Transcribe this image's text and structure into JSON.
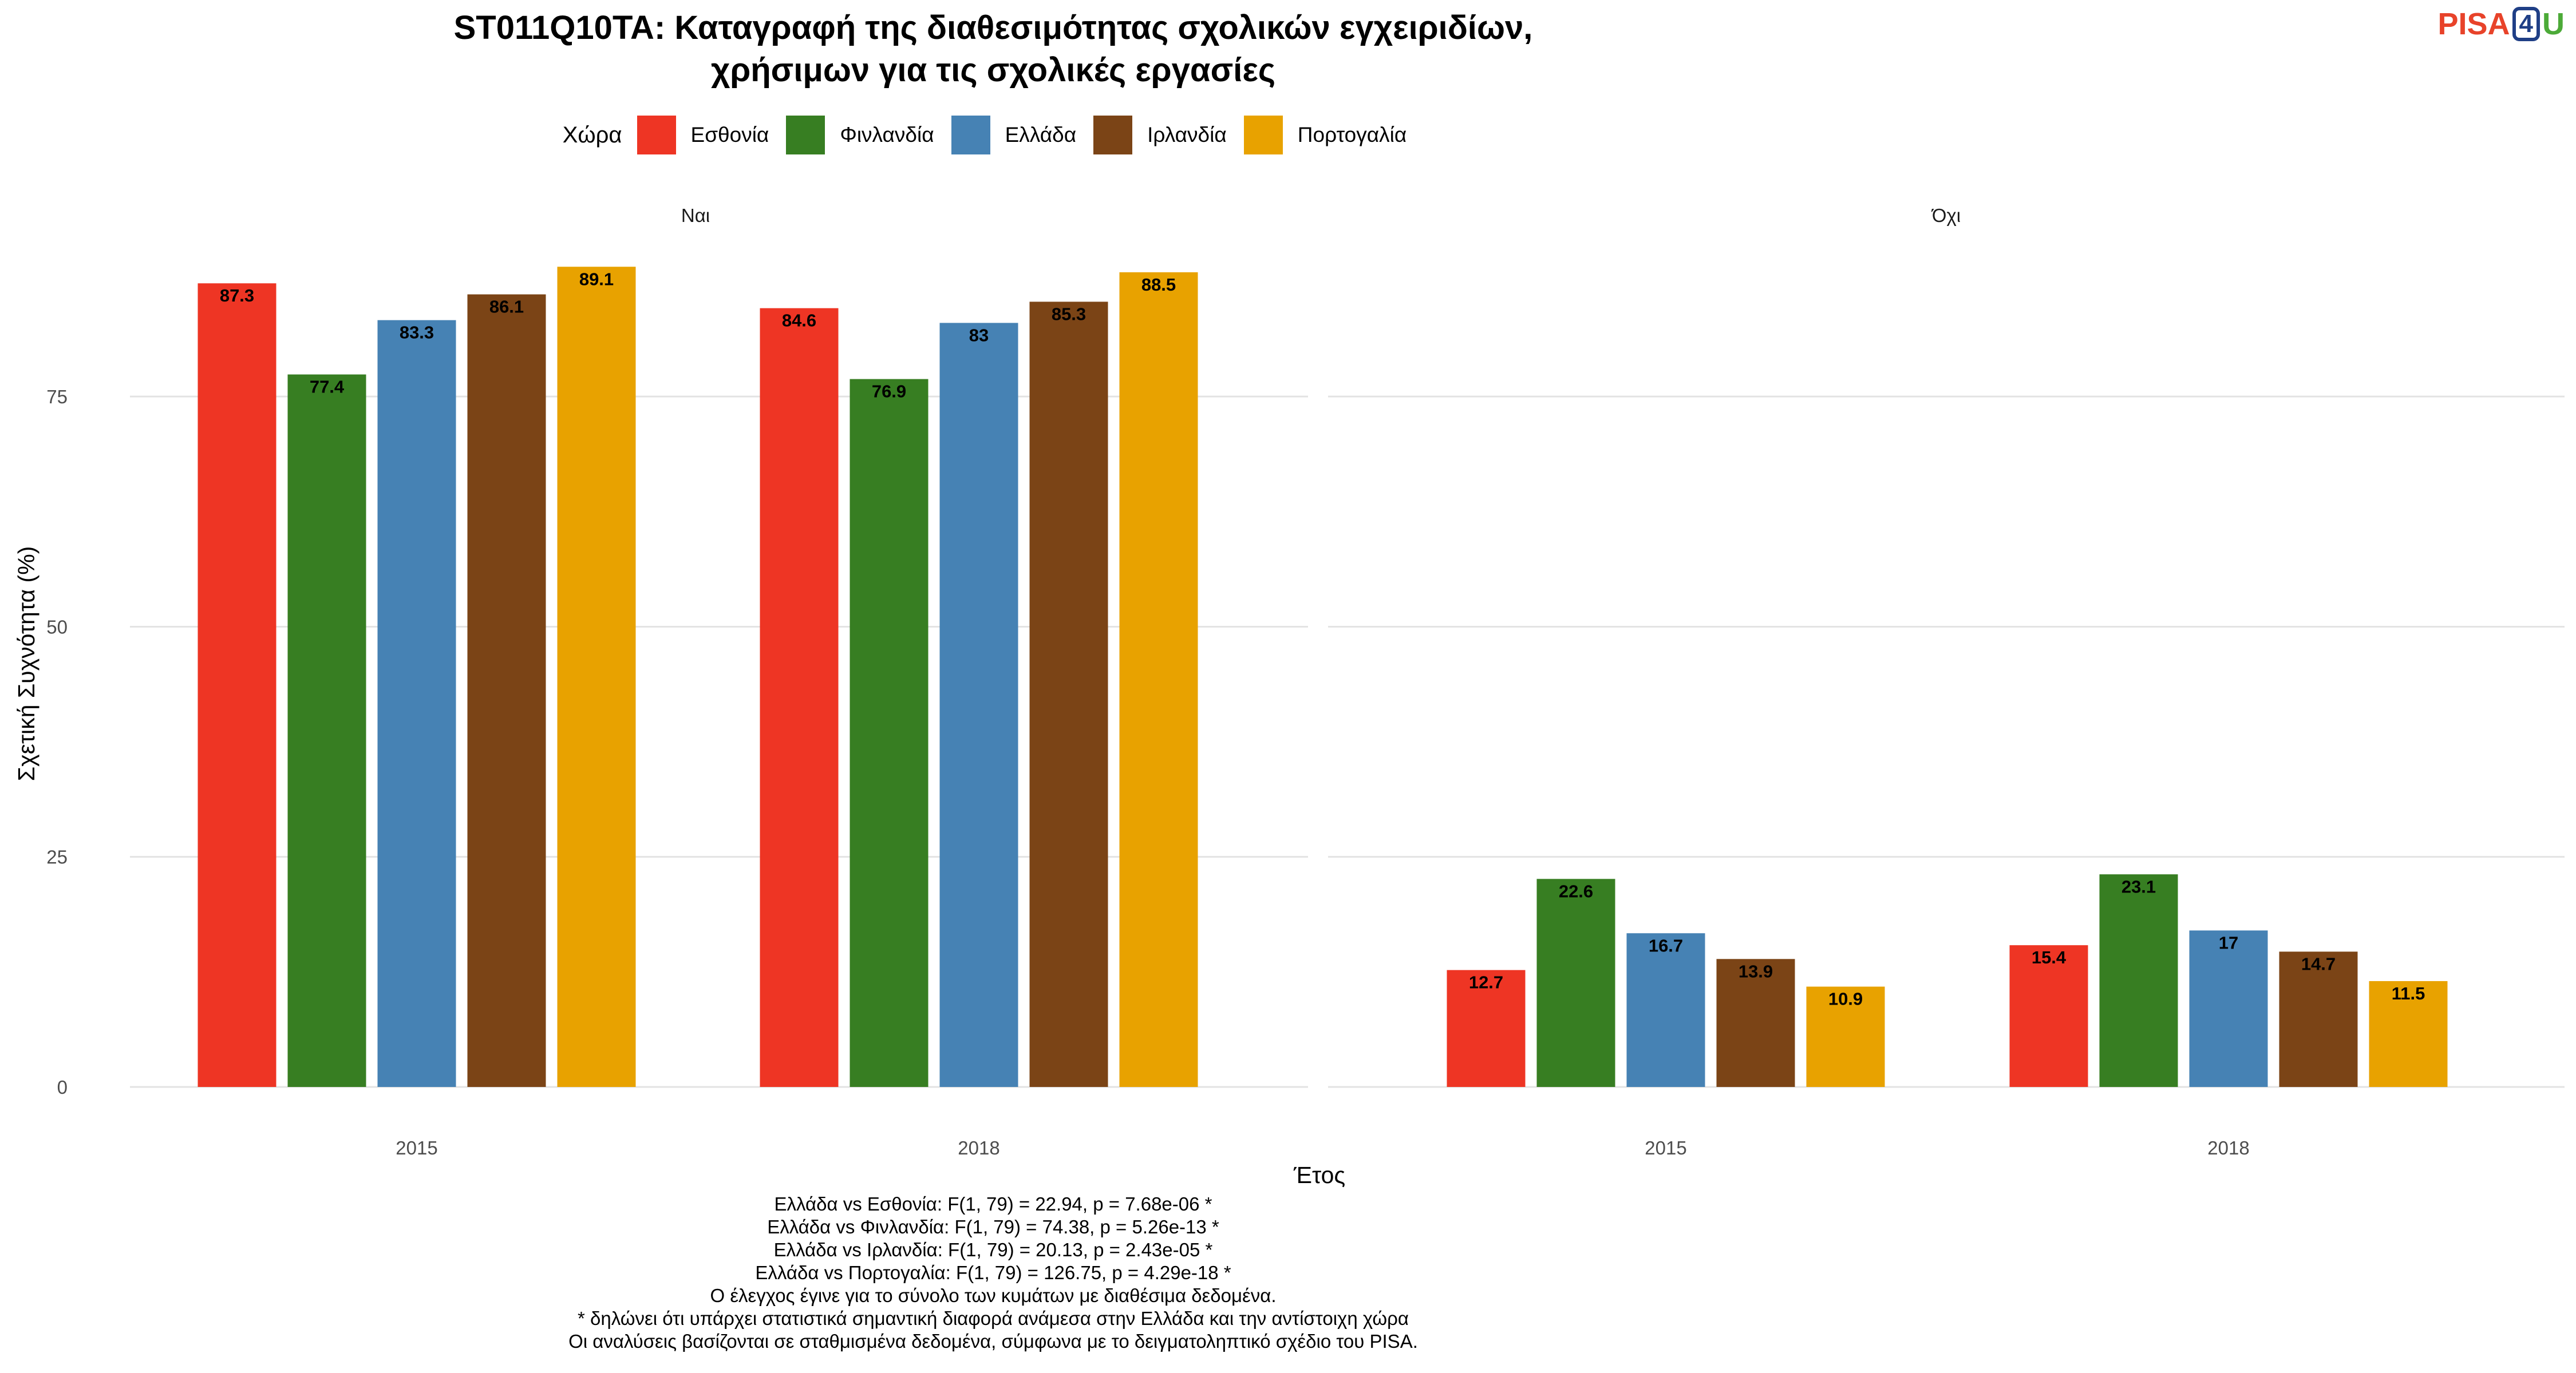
{
  "title_lines": [
    "ST011Q10TA: Καταγραφή της διαθεσιμότητας σχολικών εγχειριδίων,",
    "χρήσιμων για τις σχολικές εργασίες"
  ],
  "logo": {
    "part1": "PISA",
    "part2": "4",
    "part3": "U"
  },
  "legend": {
    "title": "Χώρα",
    "items": [
      {
        "label": "Εσθονία",
        "color": "#ee3524"
      },
      {
        "label": "Φινλανδία",
        "color": "#377e22"
      },
      {
        "label": "Ελλάδα",
        "color": "#4682b4"
      },
      {
        "label": "Ιρλανδία",
        "color": "#7b4416"
      },
      {
        "label": "Πορτογαλία",
        "color": "#e8a200"
      }
    ]
  },
  "chart_data": {
    "type": "bar",
    "xlabel": "Έτος",
    "ylabel": "Σχετική Συχνότητα (%)",
    "ylim": [
      0,
      92.1
    ],
    "yticks": [
      0,
      25,
      50,
      75
    ],
    "grid": true,
    "legend_position": "top",
    "categories": [
      "2015",
      "2018"
    ],
    "facets": [
      {
        "name": "Ναι",
        "series": [
          {
            "name": "Εσθονία",
            "values": [
              87.3,
              84.6
            ],
            "labels": [
              "87.3",
              "84.6"
            ]
          },
          {
            "name": "Φινλανδία",
            "values": [
              77.4,
              76.9
            ],
            "labels": [
              "77.4",
              "76.9"
            ]
          },
          {
            "name": "Ελλάδα",
            "values": [
              83.3,
              83
            ],
            "labels": [
              "83.3",
              "83"
            ]
          },
          {
            "name": "Ιρλανδία",
            "values": [
              86.1,
              85.3
            ],
            "labels": [
              "86.1",
              "85.3"
            ]
          },
          {
            "name": "Πορτογαλία",
            "values": [
              89.1,
              88.5
            ],
            "labels": [
              "89.1",
              "88.5"
            ]
          }
        ]
      },
      {
        "name": "Όχι",
        "series": [
          {
            "name": "Εσθονία",
            "values": [
              12.7,
              15.4
            ],
            "labels": [
              "12.7",
              "15.4"
            ]
          },
          {
            "name": "Φινλανδία",
            "values": [
              22.6,
              23.1
            ],
            "labels": [
              "22.6",
              "23.1"
            ]
          },
          {
            "name": "Ελλάδα",
            "values": [
              16.7,
              17
            ],
            "labels": [
              "16.7",
              "17"
            ]
          },
          {
            "name": "Ιρλανδία",
            "values": [
              13.9,
              14.7
            ],
            "labels": [
              "13.9",
              "14.7"
            ]
          },
          {
            "name": "Πορτογαλία",
            "values": [
              10.9,
              11.5
            ],
            "labels": [
              "10.9",
              "11.5"
            ]
          }
        ]
      }
    ]
  },
  "caption_lines": [
    "Ελλάδα vs Εσθονία: F(1, 79) = 22.94, p = 7.68e-06 *",
    "Ελλάδα vs Φινλανδία: F(1, 79) = 74.38, p = 5.26e-13 *",
    "Ελλάδα vs Ιρλανδία: F(1, 79) = 20.13, p = 2.43e-05 *",
    "Ελλάδα vs Πορτογαλία: F(1, 79) = 126.75, p = 4.29e-18 *",
    "Ο έλεγχος έγινε για το σύνολο των κυμάτων με διαθέσιμα δεδομένα.",
    "* δηλώνει ότι υπάρχει στατιστικά σημαντική διαφορά ανάμεσα στην Ελλάδα και την αντίστοιχη χώρα",
    "Οι αναλύσεις βασίζονται σε σταθμισμένα δεδομένα, σύμφωνα με το δειγματοληπτικό σχέδιο του PISA."
  ]
}
